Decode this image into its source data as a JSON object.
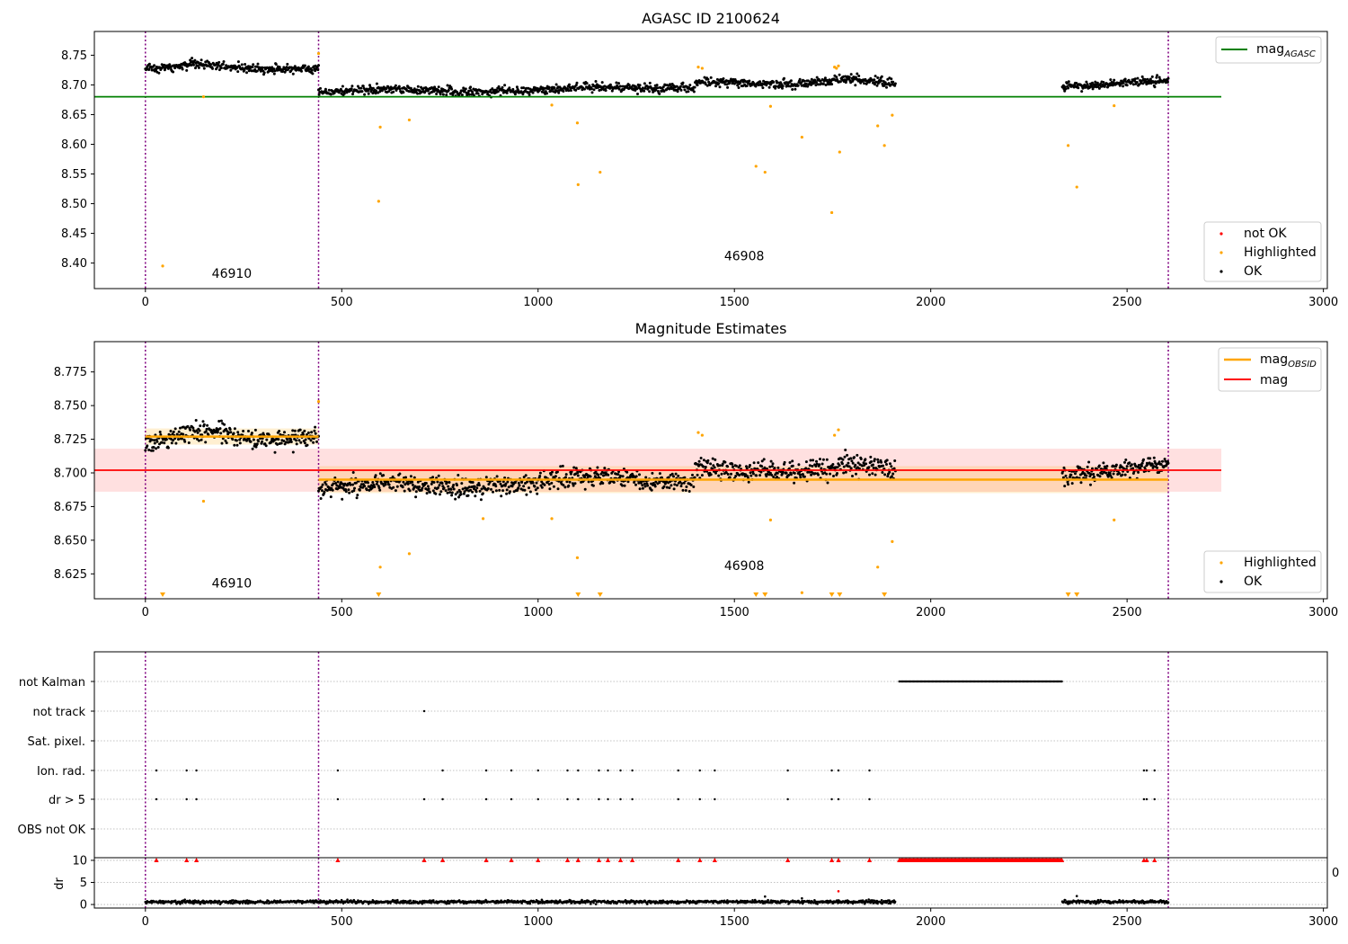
{
  "chart_data": [
    {
      "type": "scatter",
      "title": "AGASC ID 2100624",
      "xlim": [
        -130,
        3010
      ],
      "ylim": [
        8.357,
        8.79
      ],
      "xticks": [
        "0",
        "500",
        "1000",
        "1500",
        "2000",
        "2500",
        "3000"
      ],
      "yticks": [
        "8.40",
        "8.45",
        "8.50",
        "8.55",
        "8.60",
        "8.65",
        "8.70",
        "8.75"
      ],
      "obsid_boundaries": [
        0,
        441,
        2605
      ],
      "obsid_labels": [
        {
          "text": "46910",
          "x": 220,
          "y": 8.375
        },
        {
          "text": "46908",
          "x": 1525,
          "y": 8.405
        }
      ],
      "reference_lines": [
        {
          "name": "mag",
          "subscript": "AGASC",
          "value": 8.68,
          "x": [
            -130,
            2740
          ],
          "color": "#008000"
        }
      ],
      "ok_segments": [
        {
          "x": [
            0,
            441
          ],
          "level": [
            8.727,
            8.735,
            8.726,
            8.728
          ],
          "spread": 0.012
        },
        {
          "x": [
            441,
            1000
          ],
          "level": [
            8.688,
            8.693,
            8.688,
            8.692
          ],
          "spread": 0.012
        },
        {
          "x": [
            1000,
            1400
          ],
          "level": [
            8.692,
            8.697,
            8.694,
            8.695
          ],
          "spread": 0.012
        },
        {
          "x": [
            1400,
            1910
          ],
          "level": [
            8.705,
            8.702,
            8.7,
            8.71,
            8.703
          ],
          "spread": 0.013
        },
        {
          "x": [
            2335,
            2605
          ],
          "level": [
            8.697,
            8.7,
            8.705,
            8.707
          ],
          "spread": 0.011
        }
      ],
      "highlighted_points": [
        [
          44,
          8.395
        ],
        [
          148,
          8.68
        ],
        [
          594,
          8.504
        ],
        [
          598,
          8.629
        ],
        [
          672,
          8.641
        ],
        [
          1035,
          8.666
        ],
        [
          1100,
          8.636
        ],
        [
          1102,
          8.532
        ],
        [
          1158,
          8.553
        ],
        [
          1555,
          8.563
        ],
        [
          1578,
          8.553
        ],
        [
          1592,
          8.664
        ],
        [
          1672,
          8.612
        ],
        [
          1748,
          8.485
        ],
        [
          1760,
          8.728
        ],
        [
          1768,
          8.587
        ],
        [
          1865,
          8.631
        ],
        [
          1882,
          8.598
        ],
        [
          1902,
          8.649
        ],
        [
          2350,
          8.598
        ],
        [
          2372,
          8.528
        ],
        [
          2467,
          8.665
        ],
        [
          1408,
          8.73
        ],
        [
          1418,
          8.728
        ],
        [
          1755,
          8.73
        ],
        [
          1765,
          8.732
        ],
        [
          441,
          8.753
        ]
      ],
      "not_ok_points": [],
      "legend_upper": [
        {
          "label": "mag",
          "subscript": "AGASC",
          "color": "#008000"
        }
      ],
      "legend_lower": [
        {
          "label": "not OK",
          "color": "#ff0000"
        },
        {
          "label": "Highlighted",
          "color": "#ffa500"
        },
        {
          "label": "OK",
          "color": "#000000"
        }
      ]
    },
    {
      "type": "scatter",
      "title": "Magnitude Estimates",
      "xlim": [
        -130,
        3010
      ],
      "ylim": [
        8.6065,
        8.7975
      ],
      "xticks": [
        "0",
        "500",
        "1000",
        "1500",
        "2000",
        "2500",
        "3000"
      ],
      "yticks": [
        "8.625",
        "8.650",
        "8.675",
        "8.700",
        "8.725",
        "8.750",
        "8.775"
      ],
      "obsid_boundaries": [
        0,
        441,
        2605
      ],
      "obsid_labels": [
        {
          "text": "46910",
          "x": 220,
          "y": 8.615
        },
        {
          "text": "46908",
          "x": 1525,
          "y": 8.628
        }
      ],
      "mag_line": {
        "name": "mag",
        "value": 8.702,
        "band": [
          8.686,
          8.718
        ],
        "x": [
          -130,
          2740
        ],
        "color": "#ff0000"
      },
      "obsid_mag_segments": [
        {
          "x": [
            0,
            441
          ],
          "value": 8.727,
          "band": [
            8.721,
            8.733
          ]
        },
        {
          "x": [
            441,
            2605
          ],
          "value": 8.695,
          "band": [
            8.685,
            8.705
          ]
        }
      ],
      "ok_segments": [
        {
          "x": [
            0,
            441
          ],
          "level": [
            8.722,
            8.732,
            8.724,
            8.727
          ],
          "spread": 0.012
        },
        {
          "x": [
            441,
            1000
          ],
          "level": [
            8.689,
            8.692,
            8.689,
            8.692
          ],
          "spread": 0.012
        },
        {
          "x": [
            1000,
            1400
          ],
          "level": [
            8.693,
            8.698,
            8.694,
            8.695
          ],
          "spread": 0.012
        },
        {
          "x": [
            1400,
            1910
          ],
          "level": [
            8.704,
            8.701,
            8.7,
            8.708,
            8.702
          ],
          "spread": 0.013
        },
        {
          "x": [
            2335,
            2605
          ],
          "level": [
            8.697,
            8.7,
            8.704,
            8.706
          ],
          "spread": 0.011
        }
      ],
      "highlighted_points": [
        [
          441,
          8.753
        ],
        [
          148,
          8.679
        ],
        [
          598,
          8.63
        ],
        [
          672,
          8.64
        ],
        [
          1035,
          8.666
        ],
        [
          1100,
          8.637
        ],
        [
          1592,
          8.665
        ],
        [
          1408,
          8.73
        ],
        [
          1418,
          8.728
        ],
        [
          1755,
          8.728
        ],
        [
          1765,
          8.732
        ],
        [
          1865,
          8.63
        ],
        [
          1902,
          8.649
        ],
        [
          2467,
          8.665
        ],
        [
          860,
          8.666
        ],
        [
          1672,
          8.611
        ]
      ],
      "below_axis_markers": [
        44,
        594,
        1102,
        1158,
        1555,
        1578,
        1748,
        1768,
        1882,
        2350,
        2372
      ],
      "legend_upper": [
        {
          "label": "mag",
          "subscript": "OBSID",
          "color": "#ffa500"
        },
        {
          "label": "mag",
          "subscript": "",
          "color": "#ff0000"
        }
      ],
      "legend_lower": [
        {
          "label": "Highlighted",
          "color": "#ffa500"
        },
        {
          "label": "OK",
          "color": "#000000"
        }
      ]
    },
    {
      "type": "scatter",
      "title": "",
      "xlim": [
        -130,
        3010
      ],
      "flag_rows": [
        "not Kalman",
        "not track",
        "Sat. pixel.",
        "Ion. rad.",
        "dr > 5",
        "OBS not OK"
      ],
      "flag_points": {
        "not Kalman": {
          "range": [
            1920,
            2335
          ]
        },
        "not track": {
          "points": [
            710
          ]
        },
        "Sat. pixel.": {
          "points": []
        },
        "Ion. rad.": {
          "points": [
            28,
            105,
            130,
            490,
            757,
            868,
            932,
            1000,
            1075,
            1102,
            1155,
            1178,
            1210,
            1240,
            1357,
            1412,
            1450,
            1636,
            1748,
            1765,
            1844,
            2543,
            2550,
            2570
          ]
        },
        "dr > 5": {
          "points": [
            28,
            105,
            130,
            490,
            710,
            757,
            868,
            932,
            1000,
            1075,
            1102,
            1155,
            1178,
            1210,
            1240,
            1357,
            1412,
            1450,
            1636,
            1748,
            1765,
            1844,
            2543,
            2550,
            2570
          ]
        },
        "OBS not OK": {
          "points": []
        }
      }
    },
    {
      "type": "scatter",
      "title": "",
      "ylabel": "dr",
      "xlim": [
        -130,
        3010
      ],
      "ylim": [
        -0.8,
        10.6
      ],
      "xticks": [
        "0",
        "500",
        "1000",
        "1500",
        "2000",
        "2500",
        "3000"
      ],
      "yticks": [
        "0",
        "5",
        "10"
      ],
      "obsid_boundaries": [
        0,
        441,
        2605
      ],
      "dr_ok_segments": [
        {
          "x": [
            0,
            441
          ],
          "level": 0.6,
          "spread": 0.5
        },
        {
          "x": [
            441,
            1910
          ],
          "level": 0.6,
          "spread": 0.5
        },
        {
          "x": [
            2335,
            2605
          ],
          "level": 0.6,
          "spread": 0.5
        }
      ],
      "dr_outliers": [
        [
          1765,
          3.0
        ],
        [
          1578,
          1.8
        ],
        [
          1672,
          1.4
        ],
        [
          2372,
          1.9
        ]
      ],
      "capped_markers": {
        "value": 10,
        "points": [
          28,
          105,
          130,
          490,
          710,
          757,
          868,
          932,
          1000,
          1075,
          1102,
          1155,
          1178,
          1210,
          1240,
          1357,
          1412,
          1450,
          1636,
          1748,
          1765,
          1844,
          2543,
          2550,
          2570
        ],
        "range": [
          1920,
          2335
        ]
      },
      "clipped_tick_text": "0"
    }
  ]
}
